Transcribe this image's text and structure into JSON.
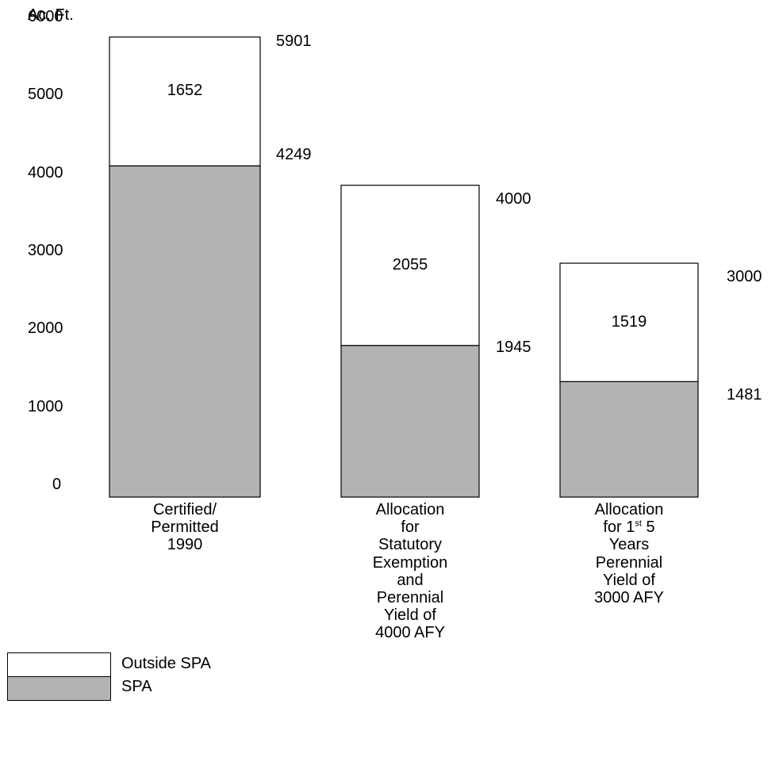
{
  "chart_data": {
    "type": "bar",
    "stacked": true,
    "ylabel": "Ac. Ft.",
    "yticks": [
      0,
      1000,
      2000,
      3000,
      4000,
      5000,
      6000
    ],
    "categories": [
      [
        "Certified/",
        "Permitted",
        "1990"
      ],
      [
        "Allocation",
        "for",
        "Statutory",
        "Exemption",
        "and",
        "Perennial",
        "Yield of",
        "4000 AFY"
      ],
      [
        "Allocation",
        "for 1|st| 5",
        "Years",
        "Perennial",
        "Yield of",
        "3000 AFY"
      ]
    ],
    "series": [
      {
        "name": "SPA",
        "values": [
          4249,
          1945,
          1481
        ],
        "color": "#b3b3b3"
      },
      {
        "name": "Outside SPA",
        "values": [
          1652,
          2055,
          1519
        ],
        "color": "#ffffff"
      }
    ],
    "totals": [
      5901,
      4000,
      3000
    ],
    "legend_position": "bottom-left",
    "grid": false
  }
}
